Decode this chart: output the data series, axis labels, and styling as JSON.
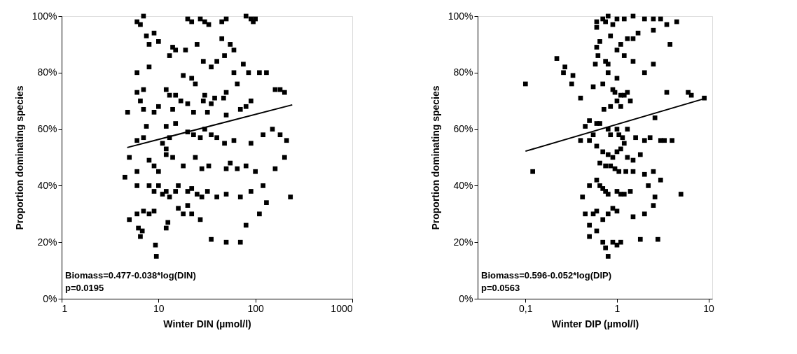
{
  "chart_data": [
    {
      "type": "scatter",
      "xlabel": "Winter DIN (µmol/l)",
      "ylabel": "Proportion dominating species",
      "log": "x",
      "xlim": [
        1,
        1000
      ],
      "xticks": [
        1,
        10,
        100,
        {
          "value": 1000,
          "label": "1000"
        }
      ],
      "ylim": [
        0,
        100
      ],
      "yticks": [
        {
          "value": 0,
          "label": "0%"
        },
        {
          "value": 20,
          "label": "20%"
        },
        {
          "value": 40,
          "label": "40%"
        },
        {
          "value": 60,
          "label": "60%"
        },
        {
          "value": 80,
          "label": "80%"
        },
        {
          "value": 100,
          "label": "100%"
        }
      ],
      "marker": "square",
      "grid": false,
      "annotations": [
        "Biomass=0.477-0.038*log(DIN)",
        "p=0.0195"
      ],
      "series": [
        {
          "color": "#000000",
          "x": [
            6,
            7,
            6.5,
            9,
            10,
            7.5,
            8,
            14,
            20,
            22,
            27,
            30,
            33,
            45,
            50,
            80,
            90,
            100,
            95,
            13,
            15,
            19,
            25,
            29,
            45,
            55,
            60,
            48,
            40,
            8,
            6,
            18,
            22,
            24,
            35,
            60,
            75,
            85,
            130,
            160,
            180,
            200,
            6,
            7,
            6.5,
            12,
            13,
            15,
            17,
            20,
            29,
            30,
            35,
            38,
            50,
            47,
            65,
            110,
            7,
            9,
            10,
            14,
            23,
            32,
            50,
            70,
            80,
            90,
            4.8,
            7.5,
            12,
            15,
            20,
            23,
            27,
            30,
            35,
            40,
            48,
            60,
            90,
            120,
            150,
            7,
            11,
            12,
            13,
            6,
            12,
            14,
            18,
            24,
            28,
            33,
            50,
            55,
            65,
            80,
            100,
            160,
            5,
            6,
            8,
            9,
            10,
            4.5,
            6,
            8,
            9,
            10,
            11,
            12,
            13,
            15,
            16,
            20,
            22,
            25,
            28,
            32,
            40,
            50,
            70,
            90,
            120,
            230,
            5,
            6,
            7,
            6.2,
            6.5,
            6.8,
            8,
            9,
            9.3,
            9.5,
            12,
            12.5,
            16,
            18,
            20,
            22,
            27,
            35,
            50,
            70,
            80,
            110,
            130,
            200,
            210,
            180
          ],
          "values": [
            98,
            100,
            97,
            94,
            91,
            93,
            90,
            89,
            99,
            98,
            99,
            98,
            97,
            98,
            99,
            100,
            99,
            99,
            98,
            86,
            88,
            88,
            90,
            84,
            92,
            90,
            88,
            86,
            84,
            82,
            80,
            79,
            78,
            76,
            82,
            80,
            83,
            80,
            80,
            74,
            74,
            73,
            73,
            74,
            70,
            74,
            72,
            72,
            70,
            69,
            70,
            72,
            69,
            71,
            73,
            71,
            76,
            80,
            67,
            66,
            68,
            67,
            66,
            66,
            65,
            67,
            68,
            70,
            66,
            61,
            61,
            62,
            59,
            58,
            57,
            60,
            58,
            57,
            55,
            56,
            55,
            58,
            60,
            57,
            55,
            53,
            57,
            56,
            51,
            50,
            47,
            50,
            46,
            47,
            46,
            48,
            46,
            47,
            45,
            46,
            50,
            45,
            49,
            47,
            45,
            43,
            40,
            40,
            38,
            40,
            37,
            38,
            36,
            38,
            40,
            38,
            39,
            37,
            36,
            38,
            36,
            37,
            36,
            38,
            40,
            36,
            28,
            30,
            31,
            25,
            22,
            24,
            30,
            31,
            19,
            15,
            25,
            27,
            32,
            30,
            33,
            30,
            28,
            21,
            20,
            20,
            26,
            30,
            34,
            50,
            56,
            58
          ]
        },
        {
          "type": "line",
          "marker": "none",
          "color": "#000000",
          "x": [
            4.75,
            240
          ],
          "values": [
            53.5,
            68.6
          ]
        }
      ]
    },
    {
      "type": "scatter",
      "xlabel": "Winter DIP (µmol/l)",
      "ylabel": "Proportion dominating species",
      "log": "x",
      "xlim": [
        0.03,
        11
      ],
      "xticks": [
        {
          "value": 0.1,
          "label": "0,1"
        },
        1,
        10
      ],
      "ylim": [
        0,
        100
      ],
      "yticks": [
        {
          "value": 0,
          "label": "0%"
        },
        {
          "value": 20,
          "label": "20%"
        },
        {
          "value": 40,
          "label": "40%"
        },
        {
          "value": 60,
          "label": "60%"
        },
        {
          "value": 80,
          "label": "80%"
        },
        {
          "value": 100,
          "label": "100%"
        }
      ],
      "marker": "square",
      "grid": false,
      "annotations": [
        "Biomass=0.596-0.052*log(DIP)",
        "p=0.0563"
      ],
      "series": [
        {
          "color": "#000000",
          "x": [
            0.1,
            0.12,
            0.22,
            0.27,
            0.26,
            0.33,
            0.32,
            0.4,
            0.55,
            0.6,
            0.6,
            0.65,
            0.6,
            0.62,
            0.58,
            0.7,
            0.75,
            0.8,
            0.9,
            1.0,
            1.2,
            1.5,
            2.0,
            2.5,
            3.0,
            0.85,
            1.1,
            1.3,
            1.5,
            1.7,
            2.5,
            3.5,
            4.5,
            3.8,
            0.75,
            0.8,
            1.0,
            1.2,
            1.5,
            2.0,
            2.5,
            0.8,
            1.0,
            0.7,
            0.9,
            0.95,
            1.1,
            1.2,
            1.3,
            1.4,
            1.0,
            1.1,
            0.85,
            0.72,
            0.5,
            0.6,
            0.65,
            0.8,
            0.85,
            1.0,
            1.05,
            1.15,
            1.3,
            1.6,
            2.0,
            2.3,
            2.6,
            3.0,
            3.3,
            3.5,
            0.45,
            0.4,
            0.5,
            0.55,
            0.6,
            0.7,
            0.8,
            0.9,
            1.0,
            1.1,
            1.2,
            1.3,
            1.5,
            1.8,
            0.65,
            0.75,
            0.85,
            0.95,
            1.05,
            1.25,
            1.5,
            2.0,
            2.5,
            0.42,
            0.5,
            0.6,
            0.65,
            0.7,
            0.75,
            0.8,
            1.0,
            1.1,
            1.2,
            1.4,
            2.2,
            2.6,
            3.0,
            0.45,
            0.5,
            0.55,
            0.6,
            0.7,
            0.8,
            0.9,
            1.0,
            1.5,
            2.0,
            2.5,
            0.5,
            0.6,
            0.7,
            0.75,
            0.8,
            0.9,
            1.0,
            1.1,
            1.8,
            2.8,
            5.0,
            6.0,
            6.5,
            9.0,
            4.0
          ],
          "values": [
            76,
            45,
            85,
            82,
            80,
            79,
            76,
            71,
            75,
            98,
            96,
            91,
            89,
            86,
            83,
            99,
            98,
            100,
            97,
            99,
            99,
            100,
            99,
            99,
            99,
            93,
            90,
            92,
            92,
            94,
            95,
            97,
            98,
            90,
            84,
            83,
            88,
            86,
            84,
            80,
            83,
            80,
            78,
            76,
            74,
            73,
            72,
            72,
            73,
            70,
            70,
            68,
            68,
            67,
            63,
            62,
            62,
            60,
            58,
            60,
            58,
            57,
            60,
            57,
            56,
            57,
            64,
            56,
            56,
            73,
            61,
            56,
            56,
            58,
            54,
            52,
            51,
            50,
            52,
            53,
            55,
            50,
            49,
            51,
            48,
            47,
            47,
            46,
            45,
            45,
            45,
            44,
            45,
            36,
            40,
            42,
            40,
            39,
            38,
            37,
            38,
            37,
            37,
            38,
            40,
            36,
            42,
            30,
            26,
            30,
            31,
            28,
            30,
            32,
            31,
            29,
            30,
            33,
            22,
            24,
            20,
            18,
            15,
            20,
            19,
            20,
            21,
            21,
            37,
            73,
            72,
            71,
            56
          ]
        },
        {
          "type": "line",
          "marker": "none",
          "color": "#000000",
          "x": [
            0.1,
            9.5
          ],
          "values": [
            52.2,
            71
          ]
        }
      ]
    }
  ]
}
